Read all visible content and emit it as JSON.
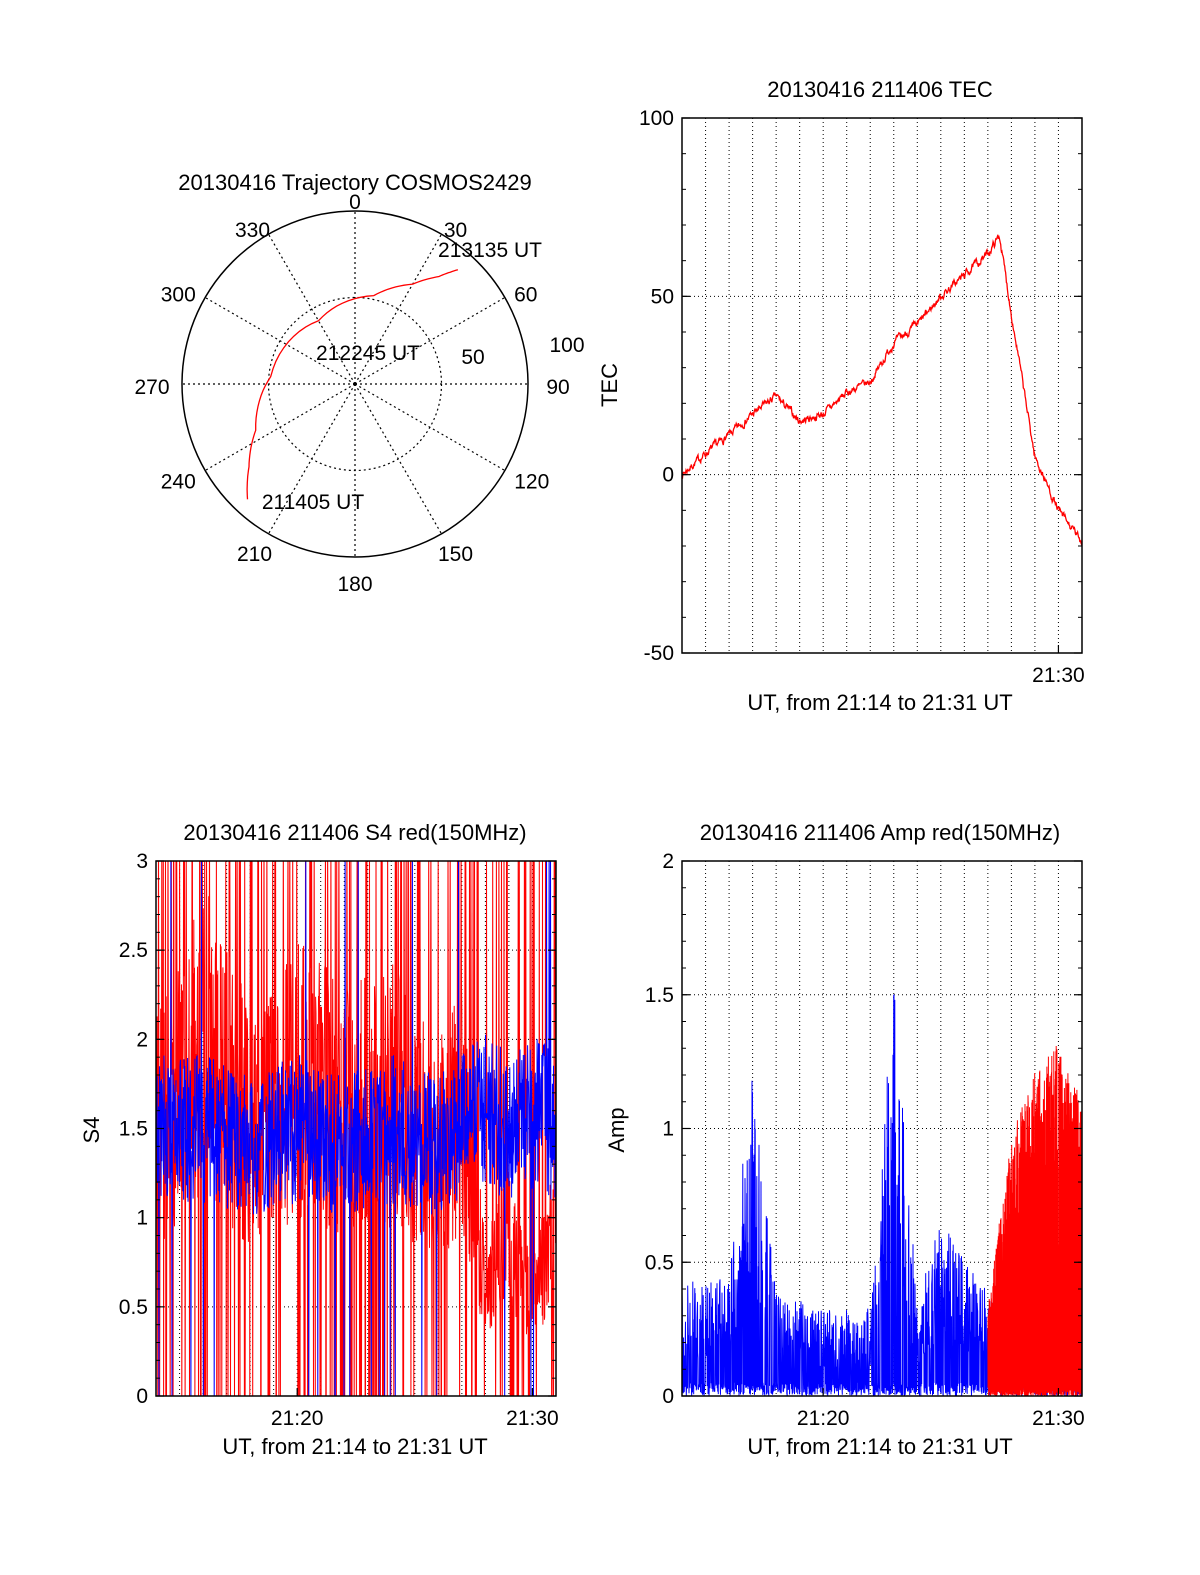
{
  "colors": {
    "primary": "#ff0000",
    "secondary": "#0000ff",
    "axis": "#000000",
    "grid": "#000000"
  },
  "chart_data": [
    {
      "type": "polar",
      "title": "20130416 Trajectory COSMOS2429",
      "angle_ticks": [
        "0",
        "30",
        "60",
        "90",
        "120",
        "150",
        "180",
        "210",
        "240",
        "270",
        "300",
        "330"
      ],
      "radial_ticks": [
        "50",
        "100"
      ],
      "grid": true,
      "series": [
        {
          "color": "#ff0000",
          "points": [
            {
              "az": 223,
              "el": 8
            },
            {
              "az": 232,
              "el": 20
            },
            {
              "az": 245,
              "el": 33
            },
            {
              "az": 275,
              "el": 46
            },
            {
              "az": 330,
              "el": 52
            },
            {
              "az": 12,
              "el": 43
            },
            {
              "az": 30,
              "el": 30
            },
            {
              "az": 38,
              "el": 19
            },
            {
              "az": 42,
              "el": 10
            }
          ]
        }
      ],
      "annotations": [
        {
          "text": "213135 UT",
          "az": 42,
          "el": 10
        },
        {
          "text": "212245 UT",
          "az": 320,
          "el": 60
        },
        {
          "text": "211405 UT",
          "az": 223,
          "el": 8
        }
      ]
    },
    {
      "type": "line",
      "title": "20130416 211406 TEC",
      "xlabel": "UT, from 21:14 to 21:31 UT",
      "ylabel": "TEC",
      "xlim": [
        21.2333,
        21.5167
      ],
      "ylim": [
        -50,
        100
      ],
      "yticks": [
        "100",
        "50",
        "0",
        "-50"
      ],
      "xticks": [
        "21:30"
      ],
      "grid": true,
      "series": [
        {
          "color": "#ff0000",
          "x": [
            21.2333,
            21.25,
            21.2667,
            21.2833,
            21.3,
            21.3167,
            21.3333,
            21.35,
            21.3667,
            21.3833,
            21.4,
            21.4167,
            21.4333,
            21.45,
            21.4583,
            21.4667,
            21.4833,
            21.5,
            21.5167
          ],
          "y": [
            0,
            6,
            11,
            17,
            22,
            15,
            17,
            23,
            26,
            37,
            42,
            50,
            56,
            62,
            67,
            45,
            5,
            -10,
            -19
          ]
        }
      ]
    },
    {
      "type": "line",
      "title": "20130416 211406 S4 red(150MHz)",
      "xlabel": "UT, from 21:14 to 21:31 UT",
      "ylabel": "S4",
      "xlim": [
        21.2333,
        21.5167
      ],
      "ylim": [
        0,
        3
      ],
      "yticks": [
        "3",
        "2.5",
        "2",
        "1.5",
        "1",
        "0.5",
        "0"
      ],
      "xticks": [
        "21:20",
        "21:30"
      ],
      "grid": true,
      "series": [
        {
          "color": "#ff0000",
          "x": [
            21.2333,
            21.2667,
            21.3,
            21.3333,
            21.3667,
            21.4,
            21.4333,
            21.45,
            21.4667,
            21.4833,
            21.5,
            21.5167
          ],
          "y": [
            1.5,
            2.0,
            1.5,
            1.8,
            1.6,
            1.7,
            1.4,
            1.6,
            0.6,
            0.9,
            0.5,
            1.0
          ]
        },
        {
          "color": "#0000ff",
          "x": [
            21.2333,
            21.2667,
            21.3,
            21.3333,
            21.3667,
            21.4,
            21.4333,
            21.45,
            21.4667,
            21.4833,
            21.5,
            21.5167
          ],
          "y": [
            1.5,
            1.5,
            1.4,
            1.5,
            1.4,
            1.5,
            1.4,
            1.5,
            1.6,
            1.5,
            1.6,
            1.5
          ]
        }
      ]
    },
    {
      "type": "line",
      "title": "20130416 211406 Amp red(150MHz)",
      "xlabel": "UT, from 21:14 to 21:31 UT",
      "ylabel": "Amp",
      "xlim": [
        21.2333,
        21.5167
      ],
      "ylim": [
        0,
        2
      ],
      "yticks": [
        "2",
        "1.5",
        "1",
        "0.5",
        "0"
      ],
      "xticks": [
        "21:20",
        "21:30"
      ],
      "grid": true,
      "series": [
        {
          "color": "#0000ff",
          "x": [
            21.2333,
            21.2667,
            21.2833,
            21.3,
            21.3333,
            21.3667,
            21.3833,
            21.4,
            21.4167,
            21.45,
            21.4833,
            21.5167
          ],
          "y": [
            0.4,
            0.4,
            1.1,
            0.35,
            0.3,
            0.3,
            1.4,
            0.32,
            0.6,
            0.35,
            0.4,
            0.4
          ]
        },
        {
          "color": "#ff0000",
          "x": [
            21.45,
            21.4667,
            21.4833,
            21.5,
            21.5167
          ],
          "y": [
            0.3,
            0.9,
            1.1,
            1.2,
            1.0
          ]
        }
      ]
    }
  ]
}
